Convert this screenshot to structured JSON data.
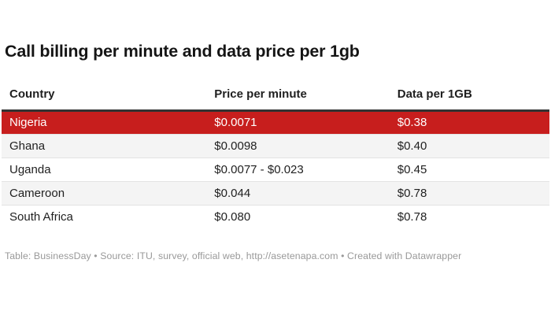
{
  "chart_data": {
    "type": "table",
    "title": "Call billing per minute and data price per 1gb",
    "columns": [
      "Country",
      "Price per minute",
      "Data per 1GB"
    ],
    "rows": [
      [
        "Nigeria",
        "$0.0071",
        "$0.38"
      ],
      [
        "Ghana",
        "$0.0098",
        "$0.40"
      ],
      [
        "Uganda",
        "$0.0077 - $0.023",
        "$0.45"
      ],
      [
        "Cameroon",
        "$0.044",
        "$0.78"
      ],
      [
        "South Africa",
        "$0.080",
        "$0.78"
      ]
    ],
    "highlighted_row": "Nigeria",
    "footer": "Table: BusinessDay • Source: ITU, survey, official web, http://asetenapa.com • Created with Datawrapper"
  },
  "colors": {
    "highlight_row_bg": "#c71e1d",
    "highlight_row_text": "#ffffff",
    "stripe_bg": "#f4f4f4",
    "header_border": "#333333",
    "row_divider": "#e3e3e3",
    "title_text": "#151515",
    "cell_text": "#1f1f1f",
    "footer_text": "#999999"
  }
}
